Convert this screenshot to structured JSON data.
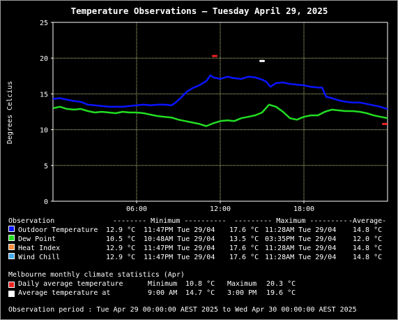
{
  "chart_data": {
    "type": "line",
    "title": "Temperature Observations – Tuesday April 29, 2025",
    "ylabel": "Degrees Celcius",
    "xlabel": "",
    "ylim": [
      0,
      25
    ],
    "yticks": [
      "0",
      "5",
      "10",
      "15",
      "20",
      "25"
    ],
    "xlim": [
      0,
      24
    ],
    "xticks": [
      {
        "x": 6,
        "label": "06:00"
      },
      {
        "x": 12,
        "label": "12:00"
      },
      {
        "x": 18,
        "label": "18:00"
      }
    ],
    "grid": true,
    "colors": {
      "background": "#000000",
      "plot_border": "#ffffff",
      "grid": "#c8d68a",
      "outdoor": "#0a14ff",
      "dewpoint": "#22dd22",
      "heatindex": "#ff8c3a",
      "windchill": "#44aaee",
      "daily_avg": "#ee2222",
      "avg_at": "#ffffff"
    },
    "series": [
      {
        "name": "Outdoor Temperature",
        "color": "#0a14ff",
        "x": [
          0,
          0.5,
          1,
          1.5,
          2,
          2.5,
          3,
          3.5,
          4,
          4.5,
          5,
          5.5,
          6,
          6.5,
          7,
          7.5,
          8,
          8.5,
          8.8,
          9.2,
          9.6,
          10,
          10.5,
          11,
          11.3,
          11.5,
          12,
          12.5,
          13,
          13.5,
          14,
          14.5,
          15,
          15.3,
          15.6,
          16,
          16.5,
          17,
          17.5,
          18,
          18.5,
          19,
          19.3,
          19.6,
          20,
          20.5,
          21,
          21.5,
          22,
          22.5,
          23,
          23.5,
          23.8,
          24
        ],
        "y": [
          14.3,
          14.4,
          14.2,
          14.0,
          13.9,
          13.5,
          13.4,
          13.3,
          13.2,
          13.2,
          13.2,
          13.3,
          13.4,
          13.5,
          13.4,
          13.5,
          13.5,
          13.4,
          13.8,
          14.5,
          15.3,
          15.8,
          16.2,
          16.8,
          17.6,
          17.3,
          17.1,
          17.4,
          17.2,
          17.1,
          17.4,
          17.3,
          17.0,
          16.7,
          16.0,
          16.5,
          16.6,
          16.4,
          16.3,
          16.2,
          16.0,
          15.9,
          15.9,
          14.6,
          14.4,
          14.1,
          13.9,
          13.8,
          13.8,
          13.6,
          13.4,
          13.2,
          13.0,
          12.9
        ]
      },
      {
        "name": "Dew Point",
        "color": "#22dd22",
        "x": [
          0,
          0.5,
          1,
          1.5,
          2,
          2.5,
          3,
          3.5,
          4,
          4.5,
          5,
          5.5,
          6,
          6.5,
          7,
          7.5,
          8,
          8.5,
          9,
          9.5,
          10,
          10.5,
          11,
          11.5,
          12,
          12.5,
          13,
          13.5,
          14,
          14.5,
          15,
          15.5,
          16,
          16.5,
          17,
          17.5,
          18,
          18.5,
          19,
          19.5,
          20,
          20.5,
          21,
          21.5,
          22,
          22.5,
          23,
          23.5,
          24
        ],
        "y": [
          13.0,
          13.2,
          12.9,
          12.8,
          12.9,
          12.6,
          12.4,
          12.5,
          12.4,
          12.3,
          12.5,
          12.4,
          12.4,
          12.3,
          12.1,
          11.9,
          11.8,
          11.7,
          11.4,
          11.2,
          11.0,
          10.8,
          10.5,
          10.9,
          11.2,
          11.3,
          11.2,
          11.6,
          11.8,
          12.0,
          12.4,
          13.5,
          13.2,
          12.5,
          11.6,
          11.4,
          11.8,
          12.0,
          12.0,
          12.5,
          12.8,
          12.7,
          12.6,
          12.6,
          12.5,
          12.3,
          12.0,
          11.8,
          11.6
        ]
      }
    ],
    "points": [
      {
        "name": "Daily average temperature",
        "color": "#ee2222",
        "x": [
          11.6,
          23.8
        ],
        "y": [
          20.3,
          10.8
        ]
      },
      {
        "name": "Average temperature at",
        "color": "#ffffff",
        "x": [
          15.0
        ],
        "y": [
          19.6
        ]
      }
    ]
  },
  "legend": {
    "header": {
      "observation": "Observation",
      "minimum": "-------- Minimum ----------",
      "maximum": "--------- Maximum ---------",
      "average": "-Average-"
    },
    "rows": [
      {
        "label": "Outdoor Temperature",
        "color": "#0a14ff",
        "min_val": "12.9 °C",
        "min_time": "11:47PM Tue 29/04",
        "max_val": "17.6 °C",
        "max_time": "11:28AM Tue 29/04",
        "avg": "14.8 °C"
      },
      {
        "label": "Dew Point",
        "color": "#22dd22",
        "min_val": "10.5 °C",
        "min_time": "10:48AM Tue 29/04",
        "max_val": "13.5 °C",
        "max_time": "03:35PM Tue 29/04",
        "avg": "12.0 °C"
      },
      {
        "label": "Heat Index",
        "color": "#ff8c3a",
        "min_val": "12.9 °C",
        "min_time": "11:47PM Tue 29/04",
        "max_val": "17.6 °C",
        "max_time": "11:28AM Tue 29/04",
        "avg": "14.8 °C"
      },
      {
        "label": "Wind Chill",
        "color": "#44aaee",
        "min_val": "12.9 °C",
        "min_time": "11:47PM Tue 29/04",
        "max_val": "17.6 °C",
        "max_time": "11:28AM Tue 29/04",
        "avg": "14.8 °C"
      }
    ]
  },
  "climate": {
    "title": "Melbourne monthly climate statistics (Apr)",
    "rows": [
      {
        "label": "Daily average temperature",
        "color": "#ee2222",
        "c1": "Minimum",
        "c2": "10.8 °C",
        "c3": "Maximum",
        "c4": "20.3 °C"
      },
      {
        "label": "Average temperature at",
        "color": "#ffffff",
        "c1": "9:00 AM",
        "c2": "14.7 °C",
        "c3": "3:00 PM",
        "c4": "19.6 °C"
      }
    ]
  },
  "period": "Observation period : Tue Apr 29 00:00:00 AEST 2025 to Wed Apr 30 00:00:00 AEST 2025"
}
